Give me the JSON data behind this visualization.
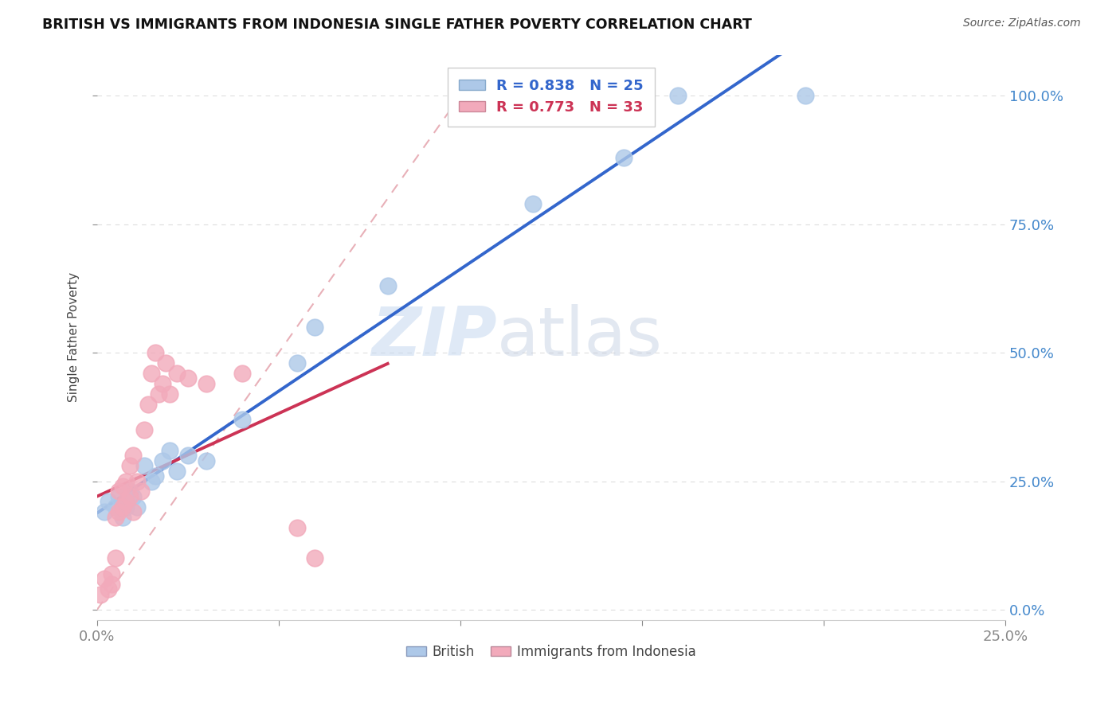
{
  "title": "BRITISH VS IMMIGRANTS FROM INDONESIA SINGLE FATHER POVERTY CORRELATION CHART",
  "source": "Source: ZipAtlas.com",
  "ylabel": "Single Father Poverty",
  "yaxis_labels": [
    "0.0%",
    "25.0%",
    "50.0%",
    "75.0%",
    "100.0%"
  ],
  "yaxis_values": [
    0,
    0.25,
    0.5,
    0.75,
    1.0
  ],
  "xlim": [
    0.0,
    0.25
  ],
  "ylim": [
    -0.02,
    1.08
  ],
  "british_R": 0.838,
  "british_N": 25,
  "indonesia_R": 0.773,
  "indonesia_N": 33,
  "british_color": "#adc8e8",
  "indonesia_color": "#f2aabb",
  "british_line_color": "#3366cc",
  "indonesia_line_color": "#cc3355",
  "diagonal_color": "#e8b0b8",
  "legend_british": "British",
  "legend_indonesia": "Immigrants from Indonesia",
  "british_x": [
    0.002,
    0.003,
    0.005,
    0.006,
    0.007,
    0.008,
    0.009,
    0.01,
    0.011,
    0.013,
    0.015,
    0.016,
    0.018,
    0.02,
    0.022,
    0.025,
    0.03,
    0.04,
    0.055,
    0.06,
    0.08,
    0.12,
    0.145,
    0.16,
    0.195
  ],
  "british_y": [
    0.19,
    0.21,
    0.2,
    0.22,
    0.18,
    0.2,
    0.23,
    0.22,
    0.2,
    0.28,
    0.25,
    0.26,
    0.29,
    0.31,
    0.27,
    0.3,
    0.29,
    0.37,
    0.48,
    0.55,
    0.63,
    0.79,
    0.88,
    1.0,
    1.0
  ],
  "indonesia_x": [
    0.001,
    0.002,
    0.003,
    0.004,
    0.004,
    0.005,
    0.005,
    0.006,
    0.006,
    0.007,
    0.007,
    0.008,
    0.008,
    0.009,
    0.009,
    0.01,
    0.01,
    0.011,
    0.012,
    0.013,
    0.014,
    0.015,
    0.016,
    0.017,
    0.018,
    0.019,
    0.02,
    0.022,
    0.025,
    0.03,
    0.04,
    0.055,
    0.06
  ],
  "indonesia_y": [
    0.03,
    0.06,
    0.04,
    0.05,
    0.07,
    0.1,
    0.18,
    0.19,
    0.23,
    0.2,
    0.24,
    0.21,
    0.25,
    0.22,
    0.28,
    0.19,
    0.3,
    0.25,
    0.23,
    0.35,
    0.4,
    0.46,
    0.5,
    0.42,
    0.44,
    0.48,
    0.42,
    0.46,
    0.45,
    0.44,
    0.46,
    0.16,
    0.1
  ],
  "watermark_zip": "ZIP",
  "watermark_atlas": "atlas",
  "background_color": "#ffffff",
  "grid_color": "#dddddd"
}
